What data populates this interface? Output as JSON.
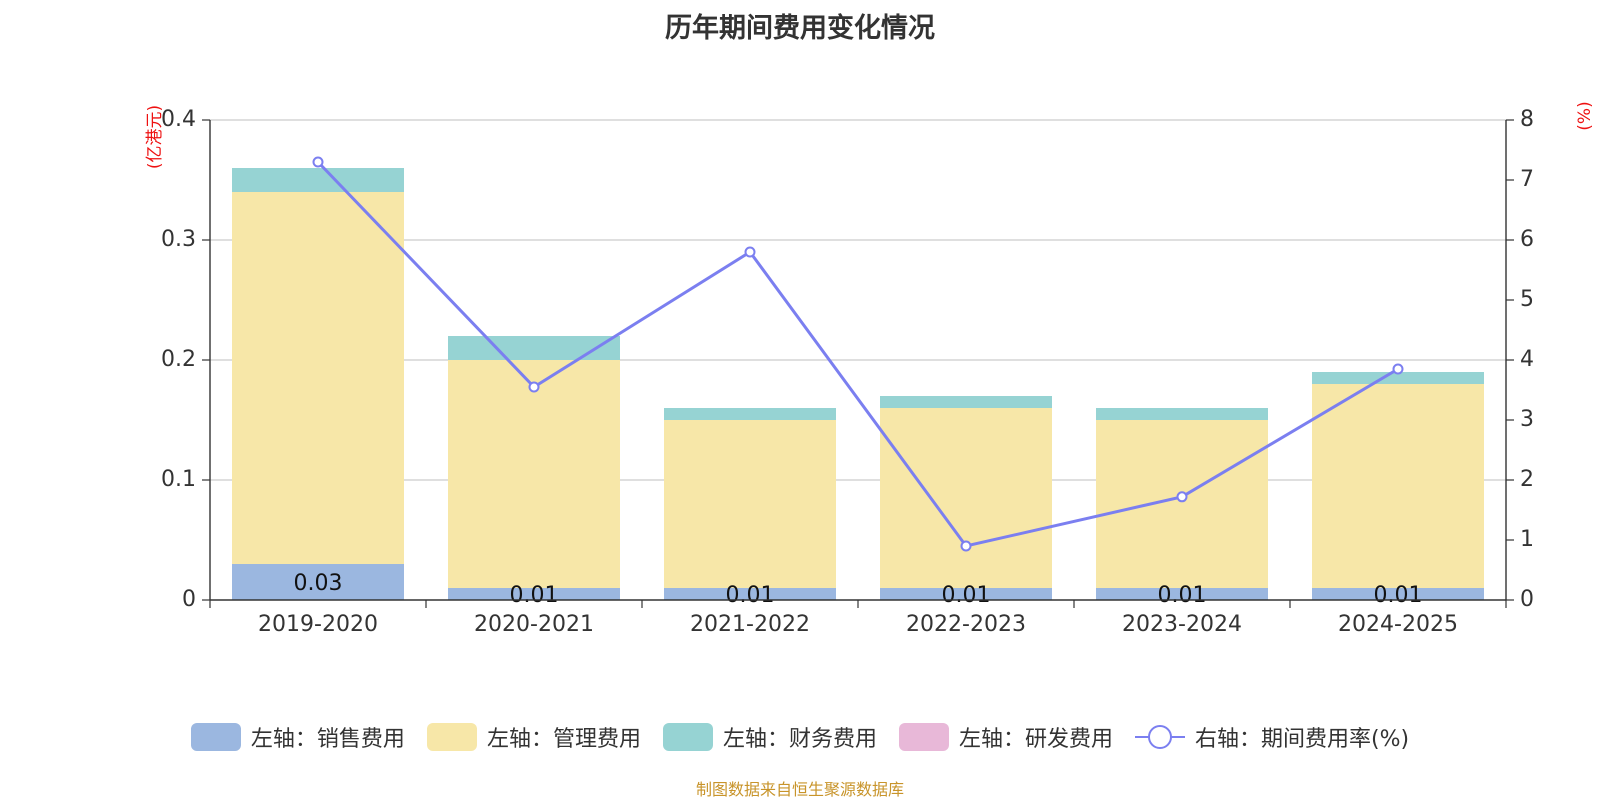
{
  "title": "历年期间费用变化情况",
  "source": "制图数据来自恒生聚源数据库",
  "legend": [
    {
      "label": "左轴：销售费用",
      "color": "#9bb7e0",
      "kind": "bar"
    },
    {
      "label": "左轴：管理费用",
      "color": "#f7e7a8",
      "kind": "bar"
    },
    {
      "label": "左轴：财务费用",
      "color": "#96d3d3",
      "kind": "bar"
    },
    {
      "label": "左轴：研发费用",
      "color": "#e8b8d8",
      "kind": "bar"
    },
    {
      "label": "右轴：期间费用率(%)",
      "color": "#7b7ff0",
      "kind": "line"
    }
  ],
  "chart_data": {
    "type": "bar",
    "stacked": true,
    "categories": [
      "2019-2020",
      "2020-2021",
      "2021-2022",
      "2022-2023",
      "2023-2024",
      "2024-2025"
    ],
    "left_axis": {
      "unit_label": "(亿港元)",
      "ylim": [
        0,
        0.4
      ],
      "ticks": [
        "0",
        "0.1",
        "0.2",
        "0.3",
        "0.4"
      ]
    },
    "right_axis": {
      "unit_label": "(%)",
      "ylim": [
        0,
        8
      ],
      "ticks": [
        "0",
        "1",
        "2",
        "3",
        "4",
        "5",
        "6",
        "7",
        "8"
      ]
    },
    "series": [
      {
        "name": "左轴：销售费用",
        "axis": "left",
        "color": "#9bb7e0",
        "values": [
          0.03,
          0.01,
          0.01,
          0.01,
          0.01,
          0.01
        ],
        "labels": [
          "0.03",
          "0.01",
          "0.01",
          "0.01",
          "0.01",
          "0.01"
        ]
      },
      {
        "name": "左轴：管理费用",
        "axis": "left",
        "color": "#f7e7a8",
        "values": [
          0.31,
          0.19,
          0.14,
          0.15,
          0.14,
          0.17
        ]
      },
      {
        "name": "左轴：财务费用",
        "axis": "left",
        "color": "#96d3d3",
        "values": [
          0.02,
          0.02,
          0.01,
          0.01,
          0.01,
          0.01
        ]
      },
      {
        "name": "左轴：研发费用",
        "axis": "left",
        "color": "#e8b8d8",
        "values": [
          0,
          0,
          0,
          0,
          0,
          0
        ]
      },
      {
        "name": "右轴：期间费用率(%)",
        "axis": "right",
        "type": "line",
        "color": "#7b7ff0",
        "values": [
          7.3,
          3.55,
          5.8,
          0.9,
          1.72,
          3.85
        ]
      }
    ],
    "grid": true,
    "legend_position": "bottom"
  }
}
